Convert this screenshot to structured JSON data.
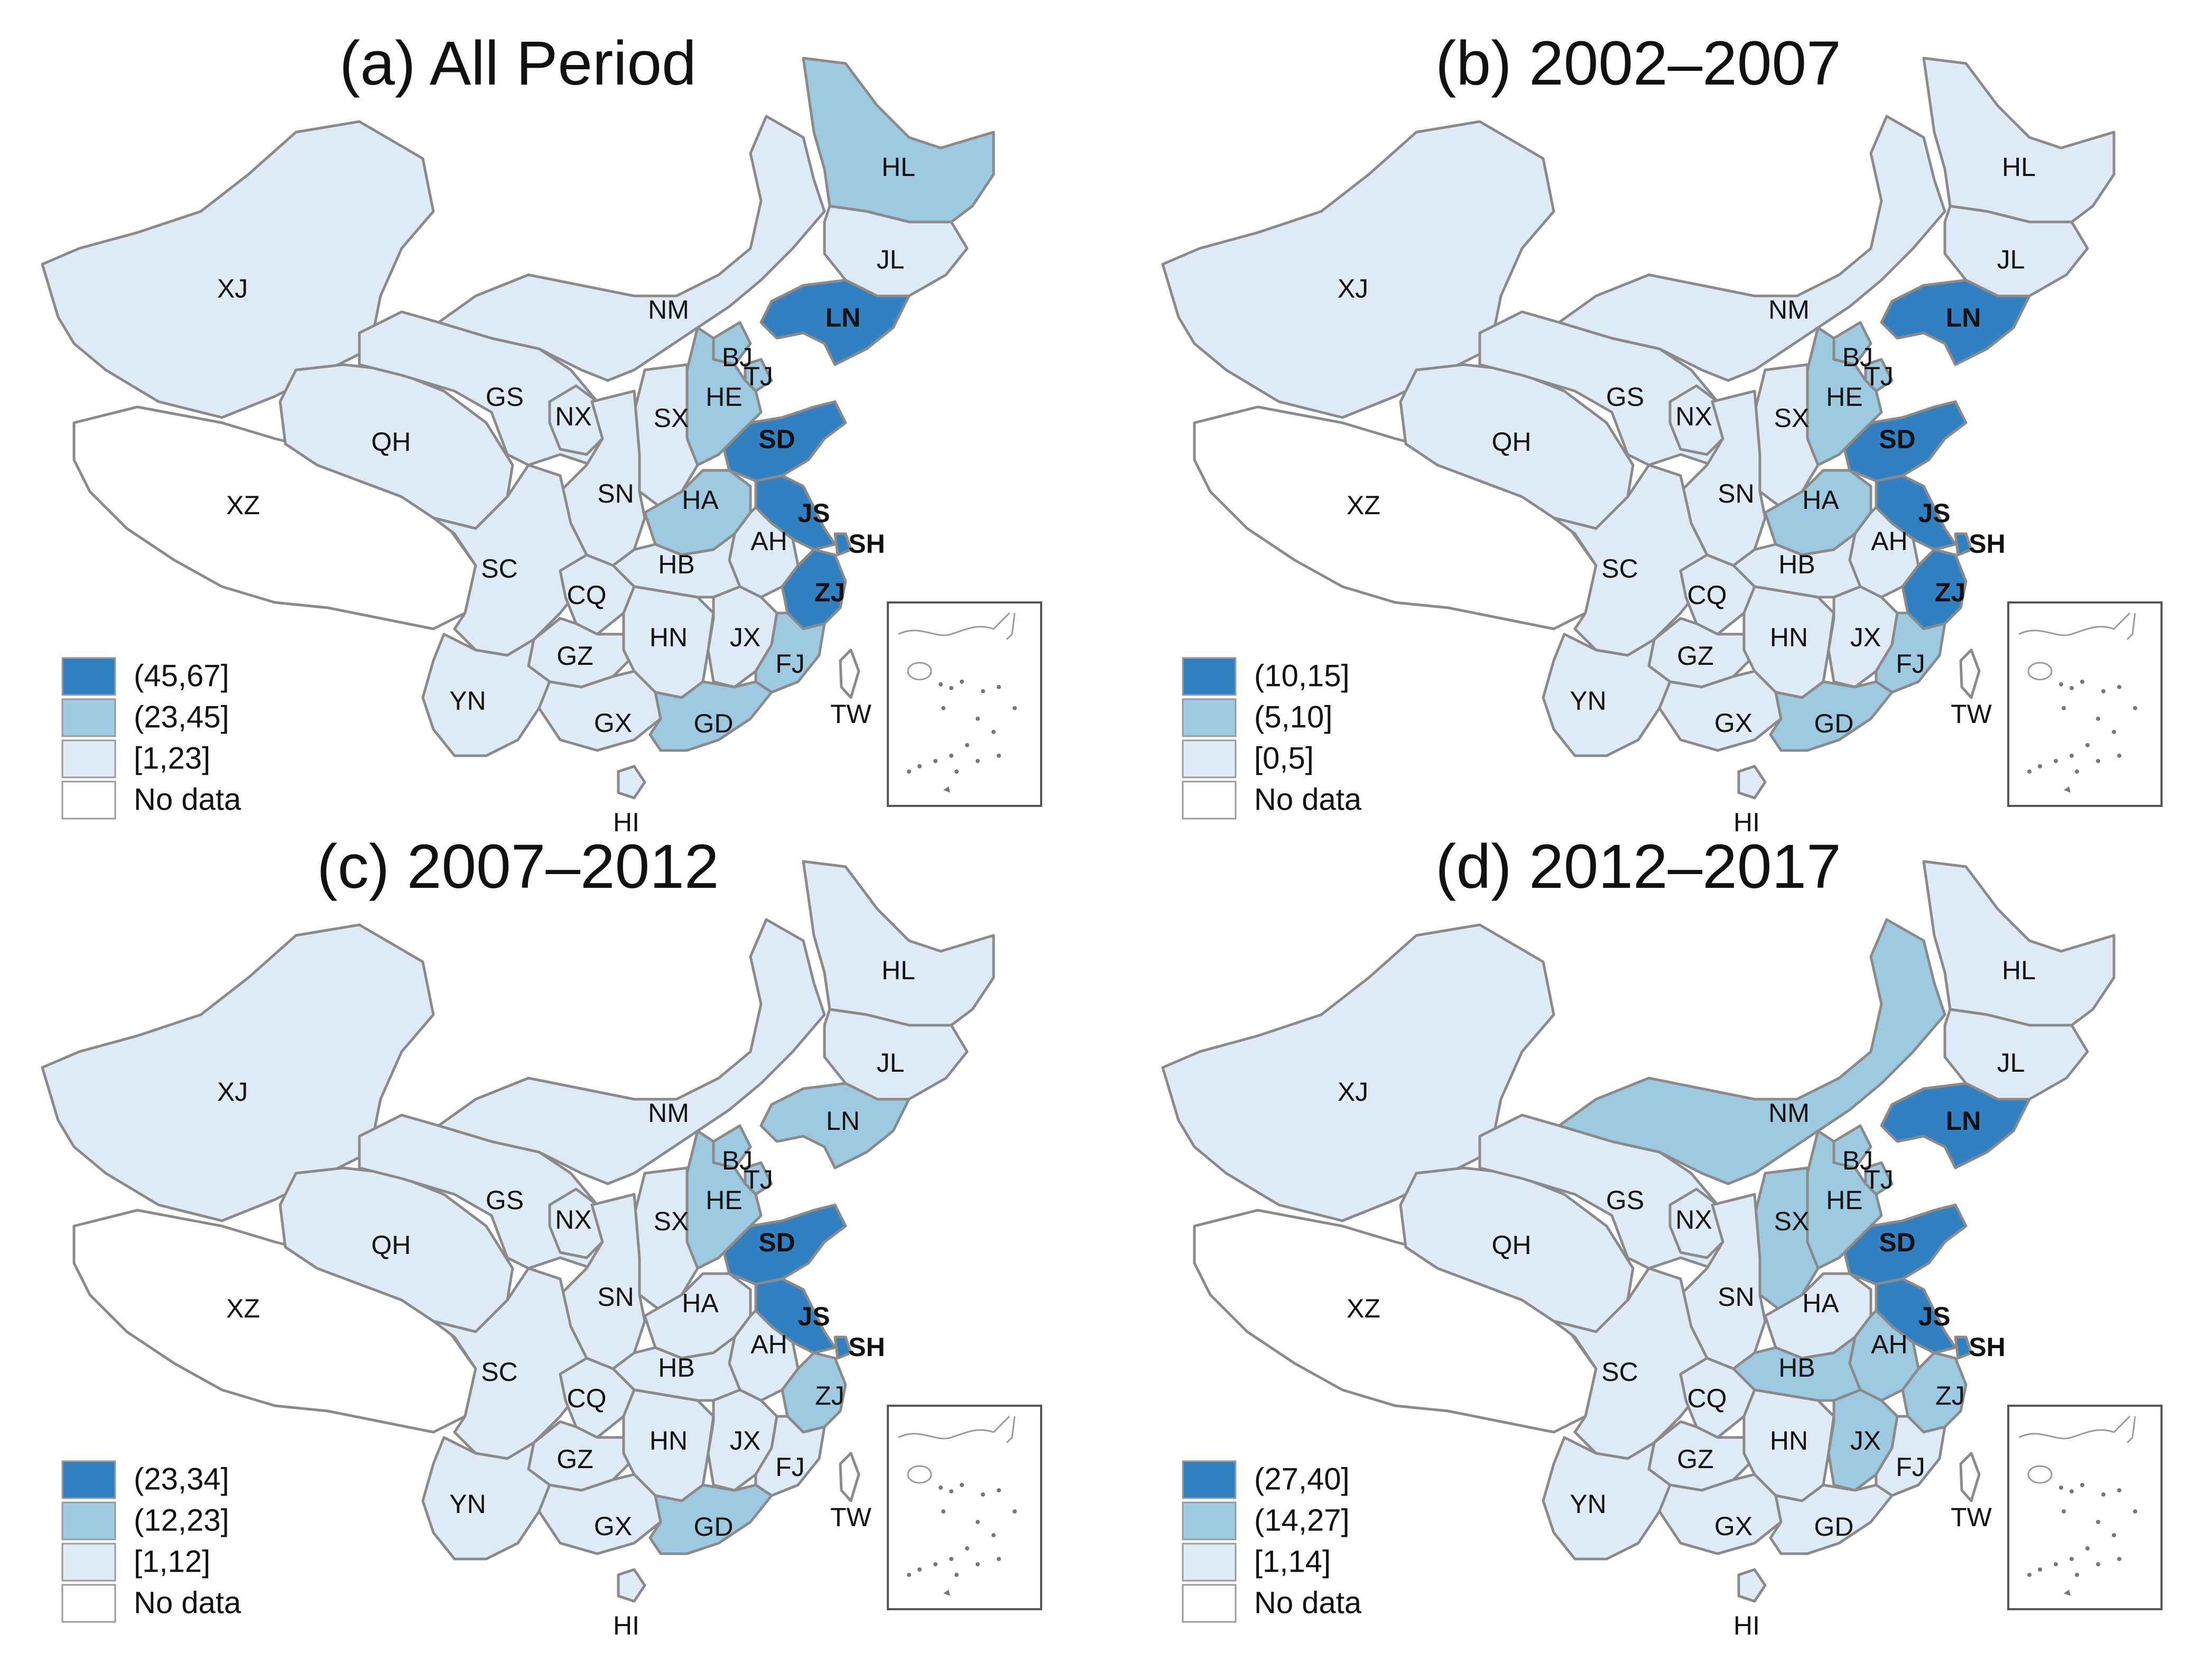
{
  "colors": {
    "high": "#3180c2",
    "mid": "#9ecae1",
    "low": "#deebf7",
    "no_data": "#ffffff"
  },
  "legend_labels": [
    "No data"
  ],
  "panels": [
    {
      "title": "(a) All Period",
      "legend": [
        "(45,67]",
        "(23,45]",
        "[1,23]",
        "No data"
      ],
      "classes": {
        "XJ": "low",
        "XZ": "no_data",
        "QH": "low",
        "GS": "low",
        "NX": "low",
        "NM": "low",
        "HL": "mid",
        "JL": "low",
        "LN": "high",
        "BJ": "mid",
        "TJ": "mid",
        "HE": "mid",
        "SX": "low",
        "SN": "low",
        "HA": "mid",
        "SD": "high",
        "JS": "high",
        "SH": "high",
        "AH": "low",
        "HB": "low",
        "SC": "low",
        "CQ": "low",
        "GZ": "low",
        "YN": "low",
        "HN": "low",
        "JX": "low",
        "ZJ": "high",
        "FJ": "mid",
        "GD": "mid",
        "GX": "low",
        "HI": "low",
        "TW": "no_data"
      }
    },
    {
      "title": "(b) 2002–2007",
      "legend": [
        "(10,15]",
        "(5,10]",
        "[0,5]",
        "No data"
      ],
      "classes": {
        "XJ": "low",
        "XZ": "no_data",
        "QH": "low",
        "GS": "low",
        "NX": "low",
        "NM": "low",
        "HL": "low",
        "JL": "low",
        "LN": "high",
        "BJ": "mid",
        "TJ": "mid",
        "HE": "mid",
        "SX": "low",
        "SN": "low",
        "HA": "mid",
        "SD": "high",
        "JS": "high",
        "SH": "high",
        "AH": "low",
        "HB": "low",
        "SC": "low",
        "CQ": "low",
        "GZ": "low",
        "YN": "low",
        "HN": "low",
        "JX": "low",
        "ZJ": "high",
        "FJ": "mid",
        "GD": "mid",
        "GX": "low",
        "HI": "low",
        "TW": "no_data"
      }
    },
    {
      "title": "(c) 2007–2012",
      "legend": [
        "(23,34]",
        "(12,23]",
        "[1,12]",
        "No data"
      ],
      "classes": {
        "XJ": "low",
        "XZ": "no_data",
        "QH": "low",
        "GS": "low",
        "NX": "low",
        "NM": "low",
        "HL": "low",
        "JL": "low",
        "LN": "mid",
        "BJ": "mid",
        "TJ": "mid",
        "HE": "mid",
        "SX": "low",
        "SN": "low",
        "HA": "low",
        "SD": "high",
        "JS": "high",
        "SH": "high",
        "AH": "low",
        "HB": "low",
        "SC": "low",
        "CQ": "low",
        "GZ": "low",
        "YN": "low",
        "HN": "low",
        "JX": "low",
        "ZJ": "mid",
        "FJ": "low",
        "GD": "mid",
        "GX": "low",
        "HI": "low",
        "TW": "no_data"
      }
    },
    {
      "title": "(d) 2012–2017",
      "legend": [
        "(27,40]",
        "(14,27]",
        "[1,14]",
        "No data"
      ],
      "classes": {
        "XJ": "low",
        "XZ": "no_data",
        "QH": "low",
        "GS": "low",
        "NX": "low",
        "NM": "mid",
        "HL": "low",
        "JL": "low",
        "LN": "high",
        "BJ": "mid",
        "TJ": "mid",
        "HE": "mid",
        "SX": "mid",
        "SN": "low",
        "HA": "low",
        "SD": "high",
        "JS": "high",
        "SH": "high",
        "AH": "mid",
        "HB": "mid",
        "SC": "low",
        "CQ": "low",
        "GZ": "low",
        "YN": "low",
        "HN": "low",
        "JX": "mid",
        "ZJ": "mid",
        "FJ": "low",
        "GD": "low",
        "GX": "low",
        "HI": "low",
        "TW": "no_data"
      }
    }
  ]
}
